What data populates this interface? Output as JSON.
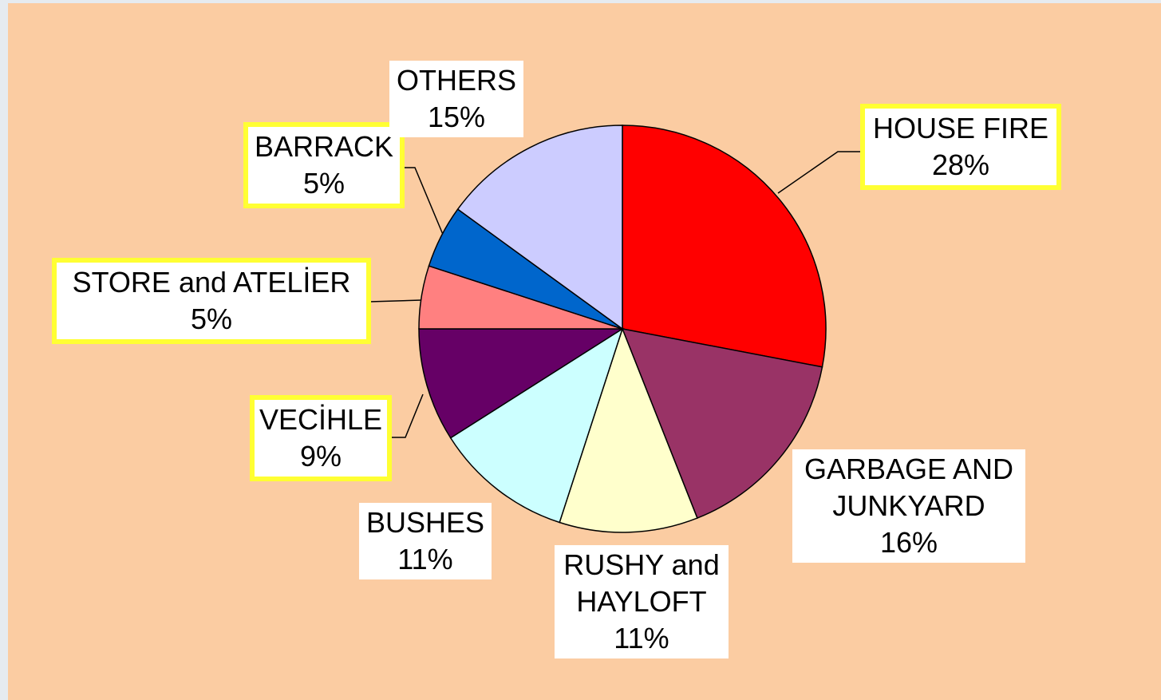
{
  "chart_data": {
    "type": "pie",
    "categories": [
      "HOUSE FIRE",
      "GARBAGE AND JUNKYARD",
      "RUSHY and HAYLOFT",
      "BUSHES",
      "VECİHLE",
      "STORE and ATELİER",
      "BARRACK",
      "OTHERS"
    ],
    "values": [
      28,
      16,
      11,
      11,
      9,
      5,
      5,
      15
    ],
    "value_labels": [
      "28%",
      "16%",
      "11%",
      "11%",
      "9%",
      "5%",
      "5%",
      "15%"
    ],
    "colors": [
      "#ff0000",
      "#993366",
      "#ffffcc",
      "#ccffff",
      "#660066",
      "#ff8080",
      "#0066cc",
      "#ccccff"
    ]
  }
}
